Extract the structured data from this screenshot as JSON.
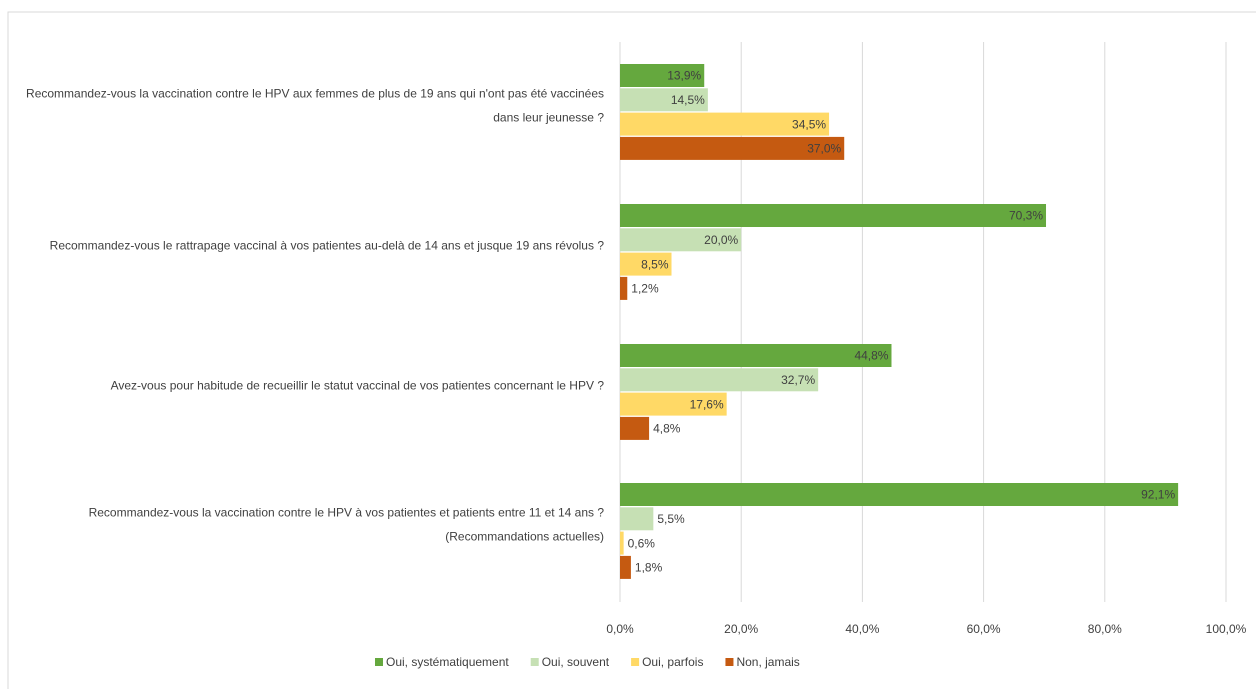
{
  "chart_data": {
    "type": "bar",
    "orientation": "horizontal",
    "categories": [
      "Recommandez-vous la vaccination contre le HPV aux femmes de plus de 19 ans qui n'ont pas été vaccinées dans leur jeunesse ?",
      "Recommandez-vous le rattrapage vaccinal à vos patientes au-delà de 14 ans et jusque 19 ans révolus ?",
      "Avez-vous pour habitude de recueillir le statut vaccinal de vos patientes concernant le HPV ?",
      "Recommandez-vous la vaccination contre le HPV à vos patientes et patients entre 11 et 14 ans ? (Recommandations actuelles)"
    ],
    "series": [
      {
        "name": "Oui, systématiquement",
        "color": "#65a83e",
        "values": [
          13.9,
          70.3,
          44.8,
          92.1
        ],
        "value_labels": [
          "13,9%",
          "70,3%",
          "44,8%",
          "92,1%"
        ]
      },
      {
        "name": "Oui, souvent",
        "color": "#c6e0b4",
        "values": [
          14.5,
          20.0,
          32.7,
          5.5
        ],
        "value_labels": [
          "14,5%",
          "20,0%",
          "32,7%",
          "5,5%"
        ]
      },
      {
        "name": "Oui, parfois",
        "color": "#ffd966",
        "values": [
          34.5,
          8.5,
          17.6,
          0.6
        ],
        "value_labels": [
          "34,5%",
          "8,5%",
          "17,6%",
          "0,6%"
        ]
      },
      {
        "name": "Non, jamais",
        "color": "#c55a11",
        "values": [
          37.0,
          1.2,
          4.8,
          1.8
        ],
        "value_labels": [
          "37,0%",
          "1,2%",
          "4,8%",
          "1,8%"
        ]
      }
    ],
    "xlim": [
      0,
      100
    ],
    "xticks": [
      {
        "value": 0,
        "label": "0,0%"
      },
      {
        "value": 20,
        "label": "20,0%"
      },
      {
        "value": 40,
        "label": "40,0%"
      },
      {
        "value": 60,
        "label": "60,0%"
      },
      {
        "value": 80,
        "label": "80,0%"
      },
      {
        "value": 100,
        "label": "100,0%"
      }
    ],
    "grid": true,
    "legend": "bottom"
  }
}
